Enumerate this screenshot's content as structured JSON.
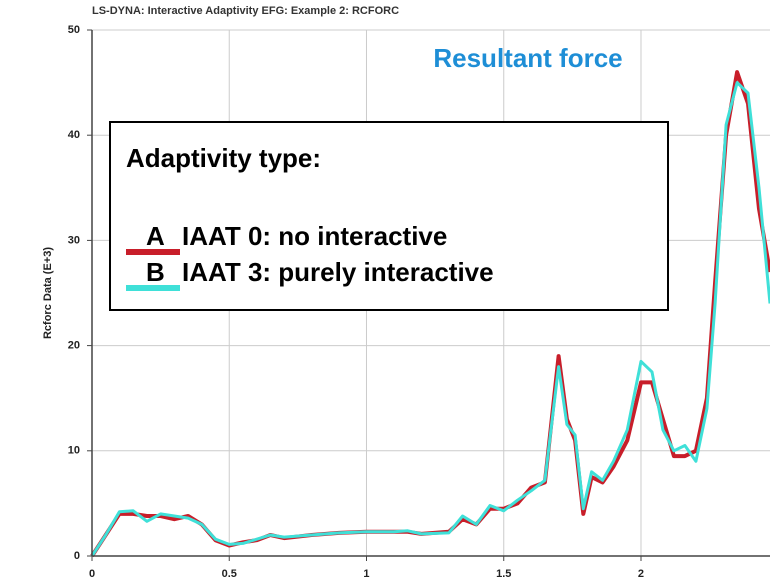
{
  "chart_data": {
    "type": "line",
    "title": "LS-DYNA: Interactive Adaptivity EFG: Example 2: RCFORC",
    "annotation": "Resultant force",
    "ylabel": "Rcforc Data (E+3)",
    "legend_title": "Adaptivity type:",
    "xlim": [
      0,
      2.47
    ],
    "ylim": [
      0,
      50
    ],
    "xticks": [
      0,
      0.5,
      1,
      1.5,
      2
    ],
    "yticks": [
      0,
      10,
      20,
      30,
      40,
      50
    ],
    "grid": true,
    "x": [
      0,
      0.05,
      0.1,
      0.15,
      0.2,
      0.25,
      0.3,
      0.35,
      0.4,
      0.45,
      0.5,
      0.55,
      0.6,
      0.65,
      0.7,
      0.8,
      0.9,
      1.0,
      1.1,
      1.15,
      1.2,
      1.3,
      1.35,
      1.4,
      1.45,
      1.5,
      1.55,
      1.6,
      1.65,
      1.7,
      1.73,
      1.76,
      1.79,
      1.82,
      1.86,
      1.9,
      1.95,
      2.0,
      2.04,
      2.08,
      2.12,
      2.16,
      2.2,
      2.24,
      2.27,
      2.31,
      2.35,
      2.39,
      2.43,
      2.47
    ],
    "series": [
      {
        "label": "A",
        "name": "IAAT 0: no interactive",
        "color": "#c81e2a",
        "values": [
          0,
          2,
          4,
          4,
          3.8,
          3.8,
          3.5,
          3.8,
          3,
          1.5,
          1,
          1.3,
          1.5,
          2,
          1.7,
          2,
          2.2,
          2.3,
          2.3,
          2.3,
          2.1,
          2.3,
          3.5,
          3,
          4.5,
          4.5,
          5,
          6.5,
          7,
          19,
          13,
          11,
          4,
          7.5,
          7,
          8.5,
          11,
          16.5,
          16.5,
          13,
          9.5,
          9.5,
          10,
          15,
          26,
          40,
          46,
          43,
          33,
          27
        ]
      },
      {
        "label": "B",
        "name": "IAAT 3: purely interactive",
        "color": "#3fe0d8",
        "values": [
          0,
          2,
          4.2,
          4.3,
          3.3,
          4,
          3.8,
          3.6,
          3,
          1.6,
          1.1,
          1.2,
          1.6,
          2,
          1.8,
          2,
          2.2,
          2.3,
          2.3,
          2.4,
          2.1,
          2.2,
          3.8,
          3,
          4.8,
          4.3,
          5.3,
          6.2,
          7.2,
          18,
          12.5,
          11.5,
          4.5,
          8,
          7.2,
          9,
          12,
          18.5,
          17.5,
          12,
          10,
          10.5,
          9,
          14,
          24,
          41,
          45,
          44,
          35,
          24
        ]
      }
    ]
  }
}
